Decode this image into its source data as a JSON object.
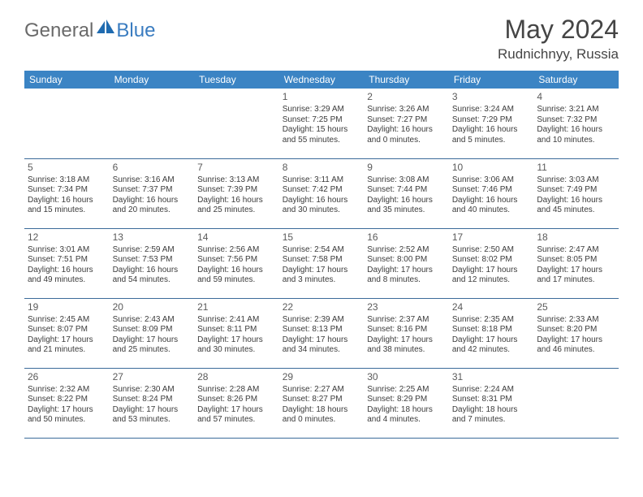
{
  "logo": {
    "general": "General",
    "blue": "Blue"
  },
  "title": "May 2024",
  "location": "Rudnichnyy, Russia",
  "colors": {
    "header_bg": "#3b84c4",
    "header_text": "#ffffff",
    "row_border": "#3b6b9a",
    "text": "#3b3b3b",
    "title_text": "#454545",
    "logo_gray": "#6a6a6a",
    "logo_blue": "#3a7cc0",
    "icon_blue": "#1f6bb0"
  },
  "day_headers": [
    "Sunday",
    "Monday",
    "Tuesday",
    "Wednesday",
    "Thursday",
    "Friday",
    "Saturday"
  ],
  "weeks": [
    [
      null,
      null,
      null,
      {
        "n": "1",
        "sr": "3:29 AM",
        "ss": "7:25 PM",
        "dl": "15 hours and 55 minutes."
      },
      {
        "n": "2",
        "sr": "3:26 AM",
        "ss": "7:27 PM",
        "dl": "16 hours and 0 minutes."
      },
      {
        "n": "3",
        "sr": "3:24 AM",
        "ss": "7:29 PM",
        "dl": "16 hours and 5 minutes."
      },
      {
        "n": "4",
        "sr": "3:21 AM",
        "ss": "7:32 PM",
        "dl": "16 hours and 10 minutes."
      }
    ],
    [
      {
        "n": "5",
        "sr": "3:18 AM",
        "ss": "7:34 PM",
        "dl": "16 hours and 15 minutes."
      },
      {
        "n": "6",
        "sr": "3:16 AM",
        "ss": "7:37 PM",
        "dl": "16 hours and 20 minutes."
      },
      {
        "n": "7",
        "sr": "3:13 AM",
        "ss": "7:39 PM",
        "dl": "16 hours and 25 minutes."
      },
      {
        "n": "8",
        "sr": "3:11 AM",
        "ss": "7:42 PM",
        "dl": "16 hours and 30 minutes."
      },
      {
        "n": "9",
        "sr": "3:08 AM",
        "ss": "7:44 PM",
        "dl": "16 hours and 35 minutes."
      },
      {
        "n": "10",
        "sr": "3:06 AM",
        "ss": "7:46 PM",
        "dl": "16 hours and 40 minutes."
      },
      {
        "n": "11",
        "sr": "3:03 AM",
        "ss": "7:49 PM",
        "dl": "16 hours and 45 minutes."
      }
    ],
    [
      {
        "n": "12",
        "sr": "3:01 AM",
        "ss": "7:51 PM",
        "dl": "16 hours and 49 minutes."
      },
      {
        "n": "13",
        "sr": "2:59 AM",
        "ss": "7:53 PM",
        "dl": "16 hours and 54 minutes."
      },
      {
        "n": "14",
        "sr": "2:56 AM",
        "ss": "7:56 PM",
        "dl": "16 hours and 59 minutes."
      },
      {
        "n": "15",
        "sr": "2:54 AM",
        "ss": "7:58 PM",
        "dl": "17 hours and 3 minutes."
      },
      {
        "n": "16",
        "sr": "2:52 AM",
        "ss": "8:00 PM",
        "dl": "17 hours and 8 minutes."
      },
      {
        "n": "17",
        "sr": "2:50 AM",
        "ss": "8:02 PM",
        "dl": "17 hours and 12 minutes."
      },
      {
        "n": "18",
        "sr": "2:47 AM",
        "ss": "8:05 PM",
        "dl": "17 hours and 17 minutes."
      }
    ],
    [
      {
        "n": "19",
        "sr": "2:45 AM",
        "ss": "8:07 PM",
        "dl": "17 hours and 21 minutes."
      },
      {
        "n": "20",
        "sr": "2:43 AM",
        "ss": "8:09 PM",
        "dl": "17 hours and 25 minutes."
      },
      {
        "n": "21",
        "sr": "2:41 AM",
        "ss": "8:11 PM",
        "dl": "17 hours and 30 minutes."
      },
      {
        "n": "22",
        "sr": "2:39 AM",
        "ss": "8:13 PM",
        "dl": "17 hours and 34 minutes."
      },
      {
        "n": "23",
        "sr": "2:37 AM",
        "ss": "8:16 PM",
        "dl": "17 hours and 38 minutes."
      },
      {
        "n": "24",
        "sr": "2:35 AM",
        "ss": "8:18 PM",
        "dl": "17 hours and 42 minutes."
      },
      {
        "n": "25",
        "sr": "2:33 AM",
        "ss": "8:20 PM",
        "dl": "17 hours and 46 minutes."
      }
    ],
    [
      {
        "n": "26",
        "sr": "2:32 AM",
        "ss": "8:22 PM",
        "dl": "17 hours and 50 minutes."
      },
      {
        "n": "27",
        "sr": "2:30 AM",
        "ss": "8:24 PM",
        "dl": "17 hours and 53 minutes."
      },
      {
        "n": "28",
        "sr": "2:28 AM",
        "ss": "8:26 PM",
        "dl": "17 hours and 57 minutes."
      },
      {
        "n": "29",
        "sr": "2:27 AM",
        "ss": "8:27 PM",
        "dl": "18 hours and 0 minutes."
      },
      {
        "n": "30",
        "sr": "2:25 AM",
        "ss": "8:29 PM",
        "dl": "18 hours and 4 minutes."
      },
      {
        "n": "31",
        "sr": "2:24 AM",
        "ss": "8:31 PM",
        "dl": "18 hours and 7 minutes."
      },
      null
    ]
  ],
  "labels": {
    "sunrise": "Sunrise:",
    "sunset": "Sunset:",
    "daylight": "Daylight:"
  }
}
